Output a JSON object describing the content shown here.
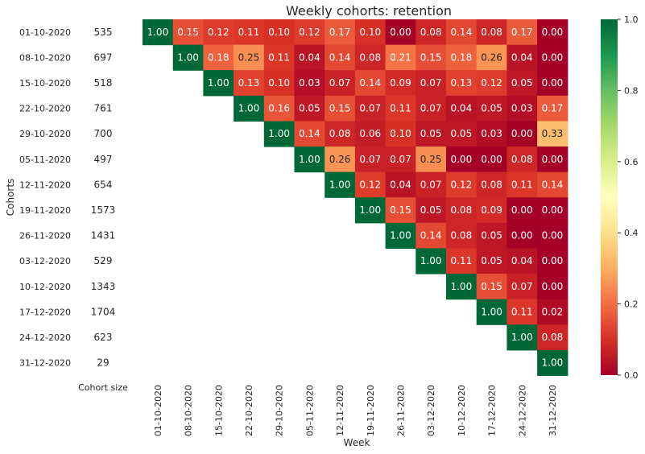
{
  "chart_data": {
    "type": "heatmap",
    "title": "Weekly cohorts: retention",
    "xlabel": "Week",
    "ylabel": "Cohorts",
    "size_header": "Cohort size",
    "weeks": [
      "01-10-2020",
      "08-10-2020",
      "15-10-2020",
      "22-10-2020",
      "29-10-2020",
      "05-11-2020",
      "12-11-2020",
      "19-11-2020",
      "26-11-2020",
      "03-12-2020",
      "10-12-2020",
      "17-12-2020",
      "24-12-2020",
      "31-12-2020"
    ],
    "cohorts": [
      {
        "label": "01-10-2020",
        "size": "535",
        "values": [
          "1.00",
          "0.15",
          "0.12",
          "0.11",
          "0.10",
          "0.12",
          "0.17",
          "0.10",
          "0.00",
          "0.08",
          "0.14",
          "0.08",
          "0.17",
          "0.00"
        ]
      },
      {
        "label": "08-10-2020",
        "size": "697",
        "values": [
          "1.00",
          "0.18",
          "0.25",
          "0.11",
          "0.04",
          "0.14",
          "0.08",
          "0.21",
          "0.15",
          "0.18",
          "0.26",
          "0.04",
          "0.00"
        ]
      },
      {
        "label": "15-10-2020",
        "size": "518",
        "values": [
          "1.00",
          "0.13",
          "0.10",
          "0.03",
          "0.07",
          "0.14",
          "0.09",
          "0.07",
          "0.13",
          "0.12",
          "0.05",
          "0.00"
        ]
      },
      {
        "label": "22-10-2020",
        "size": "761",
        "values": [
          "1.00",
          "0.16",
          "0.05",
          "0.15",
          "0.07",
          "0.11",
          "0.07",
          "0.04",
          "0.05",
          "0.03",
          "0.17"
        ]
      },
      {
        "label": "29-10-2020",
        "size": "700",
        "values": [
          "1.00",
          "0.14",
          "0.08",
          "0.06",
          "0.10",
          "0.05",
          "0.05",
          "0.03",
          "0.00",
          "0.33"
        ]
      },
      {
        "label": "05-11-2020",
        "size": "497",
        "values": [
          "1.00",
          "0.26",
          "0.07",
          "0.07",
          "0.25",
          "0.00",
          "0.00",
          "0.08",
          "0.00"
        ]
      },
      {
        "label": "12-11-2020",
        "size": "654",
        "values": [
          "1.00",
          "0.12",
          "0.04",
          "0.07",
          "0.12",
          "0.08",
          "0.11",
          "0.14"
        ]
      },
      {
        "label": "19-11-2020",
        "size": "1573",
        "values": [
          "1.00",
          "0.15",
          "0.05",
          "0.08",
          "0.09",
          "0.00",
          "0.00"
        ]
      },
      {
        "label": "26-11-2020",
        "size": "1431",
        "values": [
          "1.00",
          "0.14",
          "0.08",
          "0.05",
          "0.00",
          "0.00"
        ]
      },
      {
        "label": "03-12-2020",
        "size": "529",
        "values": [
          "1.00",
          "0.11",
          "0.05",
          "0.04",
          "0.00"
        ]
      },
      {
        "label": "10-12-2020",
        "size": "1343",
        "values": [
          "1.00",
          "0.15",
          "0.07",
          "0.00"
        ]
      },
      {
        "label": "17-12-2020",
        "size": "1704",
        "values": [
          "1.00",
          "0.11",
          "0.02"
        ]
      },
      {
        "label": "24-12-2020",
        "size": "623",
        "values": [
          "1.00",
          "0.08"
        ]
      },
      {
        "label": "31-12-2020",
        "size": "29",
        "values": [
          "1.00"
        ]
      }
    ],
    "colorbar": {
      "range": [
        0,
        1
      ],
      "ticks": [
        "0.0",
        "0.2",
        "0.4",
        "0.6",
        "0.8",
        "1.0"
      ],
      "colormap": "RdYlGn"
    }
  }
}
